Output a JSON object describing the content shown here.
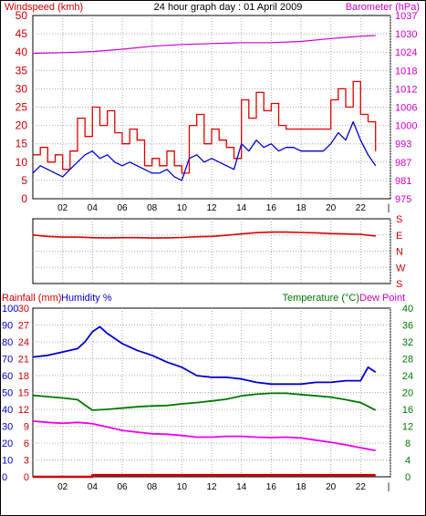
{
  "window": {
    "border_color": "#000000"
  },
  "chart_data": [
    {
      "type": "line",
      "panel": "wind-barometer",
      "title": "24 hour graph day : 01 April 2009",
      "left_axis_label": "Windspeed (kmh)",
      "right_axis_label": "Barometer (hPa)",
      "left_axis_color": "#cc0000",
      "right_axis_color": "#cc00cc",
      "xlim": [
        0,
        24
      ],
      "x_ticks": [
        "02",
        "04",
        "06",
        "08",
        "10",
        "12",
        "14",
        "16",
        "18",
        "20",
        "22",
        "|"
      ],
      "left_ticks": [
        "0",
        "5",
        "10",
        "15",
        "20",
        "25",
        "30",
        "35",
        "40",
        "45",
        "50"
      ],
      "left_ylim": [
        0,
        50
      ],
      "right_ticks": [
        "975",
        "981",
        "987",
        "993",
        "1000",
        "1006",
        "1012",
        "1018",
        "1024",
        "1030",
        "1037"
      ],
      "right_ylim": [
        975,
        1037
      ],
      "grid": true,
      "series": [
        {
          "name": "Wind gust",
          "color": "#dd0000",
          "axis": "left",
          "x": [
            0,
            0.5,
            1,
            1.5,
            2,
            2.5,
            3,
            3.5,
            4,
            4.5,
            5,
            5.5,
            6,
            6.5,
            7,
            7.5,
            8,
            8.5,
            9,
            9.5,
            10,
            10.5,
            11,
            11.5,
            12,
            12.5,
            13,
            13.5,
            14,
            14.5,
            15,
            15.5,
            16,
            16.5,
            17,
            17.5,
            18,
            18.5,
            19,
            19.5,
            20,
            20.5,
            21,
            21.5,
            22,
            22.5,
            23
          ],
          "values": [
            12,
            14,
            10,
            12,
            8,
            13,
            22,
            17,
            25,
            20,
            24,
            18,
            15,
            19,
            16,
            9,
            11,
            9,
            13,
            9,
            7,
            20,
            23,
            15,
            19,
            16,
            14,
            11,
            27,
            22,
            29,
            24,
            26,
            20,
            19,
            19,
            19,
            19,
            19,
            19,
            27,
            30,
            25,
            32,
            23,
            21,
            13
          ]
        },
        {
          "name": "Wind speed",
          "color": "#0000cc",
          "axis": "left",
          "x": [
            0,
            0.5,
            1,
            1.5,
            2,
            2.5,
            3,
            3.5,
            4,
            4.5,
            5,
            5.5,
            6,
            6.5,
            7,
            7.5,
            8,
            8.5,
            9,
            9.5,
            10,
            10.5,
            11,
            11.5,
            12,
            12.5,
            13,
            13.5,
            14,
            14.5,
            15,
            15.5,
            16,
            16.5,
            17,
            17.5,
            18,
            18.5,
            19,
            19.5,
            20,
            20.5,
            21,
            21.5,
            22,
            22.5,
            23
          ],
          "values": [
            7,
            9,
            8,
            7,
            6,
            8,
            10,
            12,
            13,
            11,
            12,
            10,
            9,
            10,
            9,
            8,
            7,
            7,
            8,
            6,
            5,
            11,
            12,
            10,
            11,
            10,
            9,
            8,
            15,
            13,
            16,
            14,
            15,
            13,
            14,
            14,
            13,
            13,
            13,
            13,
            15,
            18,
            16,
            21,
            16,
            12,
            9
          ]
        },
        {
          "name": "Barometer",
          "color": "#cc00cc",
          "axis": "right",
          "x": [
            0,
            2,
            4,
            6,
            8,
            10,
            12,
            14,
            16,
            18,
            20,
            22,
            23
          ],
          "values": [
            1024.2,
            1024.4,
            1024.8,
            1025.6,
            1026.6,
            1027.2,
            1027.5,
            1027.8,
            1027.8,
            1028.2,
            1029.2,
            1030.0,
            1030.2
          ]
        }
      ]
    },
    {
      "type": "line",
      "panel": "wind-direction",
      "direction_labels": [
        "S",
        "E",
        "N",
        "W",
        "S"
      ],
      "xlim": [
        0,
        24
      ],
      "ylim": [
        0,
        360
      ],
      "grid": true,
      "series": [
        {
          "name": "Wind direction",
          "color": "#dd0000",
          "x": [
            0,
            1,
            2,
            3,
            4,
            5,
            6,
            7,
            8,
            9,
            10,
            11,
            12,
            13,
            14,
            15,
            16,
            17,
            18,
            19,
            20,
            21,
            22,
            23
          ],
          "values": [
            270,
            262,
            258,
            258,
            255,
            254,
            255,
            255,
            253,
            254,
            256,
            260,
            262,
            268,
            276,
            283,
            286,
            286,
            284,
            282,
            278,
            276,
            274,
            264
          ]
        }
      ]
    },
    {
      "type": "line",
      "panel": "rain-humidity-temperature",
      "left_label_rainfall": "Rainfall (mm)",
      "left_label_humidity": "Humidity %",
      "right_label_temperature": "Temperature (°C)",
      "right_label_dewpoint": "Dew Point",
      "rainfall_color": "#cc0000",
      "humidity_color": "#0000cc",
      "temperature_color": "#007700",
      "dewpoint_color": "#cc00cc",
      "humidity_ticks": [
        "0",
        "10",
        "20",
        "30",
        "40",
        "50",
        "60",
        "70",
        "80",
        "90",
        "100"
      ],
      "rainfall_ticks": [
        "0",
        "3",
        "6",
        "9",
        "12",
        "15",
        "18",
        "21",
        "24",
        "27",
        "30"
      ],
      "temperature_ticks": [
        "0",
        "4",
        "8",
        "12",
        "16",
        "20",
        "24",
        "28",
        "32",
        "36",
        "40"
      ],
      "humidity_ylim": [
        0,
        100
      ],
      "temperature_ylim": [
        0,
        40
      ],
      "xlim": [
        0,
        24
      ],
      "x_ticks": [
        "02",
        "04",
        "06",
        "08",
        "10",
        "12",
        "14",
        "16",
        "18",
        "20",
        "22",
        "|"
      ],
      "grid": true,
      "series": [
        {
          "name": "Humidity",
          "color": "#0000cc",
          "axis": "humidity",
          "x": [
            0,
            1,
            2,
            3,
            3.5,
            4,
            4.5,
            5,
            5.5,
            6,
            7,
            8,
            9,
            10,
            11,
            12,
            13,
            14,
            15,
            16,
            17,
            18,
            19,
            20,
            21,
            22,
            22.5,
            23
          ],
          "values": [
            71,
            72,
            74,
            76,
            80,
            86,
            89,
            85,
            82,
            79,
            75,
            72,
            68,
            65,
            60,
            59,
            59,
            58,
            56,
            55,
            55,
            55,
            56,
            56,
            57,
            57,
            65,
            62
          ]
        },
        {
          "name": "Temperature",
          "color": "#007700",
          "axis": "temperature",
          "x": [
            0,
            1,
            2,
            3,
            3.5,
            4,
            5,
            6,
            7,
            8,
            9,
            10,
            11,
            12,
            13,
            14,
            15,
            16,
            17,
            18,
            19,
            20,
            21,
            22,
            23
          ],
          "values": [
            19.3,
            19.0,
            18.7,
            18.3,
            17.0,
            15.8,
            16.0,
            16.3,
            16.6,
            16.8,
            16.9,
            17.3,
            17.6,
            18.0,
            18.4,
            19.2,
            19.6,
            19.8,
            19.8,
            19.5,
            19.2,
            18.9,
            18.3,
            17.6,
            15.8
          ]
        },
        {
          "name": "Dew point",
          "color": "#ee00ee",
          "axis": "temperature",
          "x": [
            0,
            1,
            2,
            3,
            4,
            5,
            6,
            7,
            8,
            9,
            10,
            11,
            12,
            13,
            14,
            15,
            16,
            17,
            18,
            19,
            20,
            21,
            22,
            23
          ],
          "values": [
            13.2,
            12.9,
            12.7,
            12.9,
            12.6,
            11.8,
            11.0,
            10.6,
            10.2,
            10.1,
            9.8,
            9.4,
            9.4,
            9.6,
            9.6,
            9.4,
            9.3,
            9.4,
            9.2,
            8.7,
            8.2,
            7.6,
            6.9,
            6.2
          ]
        },
        {
          "name": "Rainfall",
          "color": "#cc0000",
          "axis": "rainfall",
          "x": [
            0,
            3.9,
            4.0,
            23
          ],
          "values": [
            0,
            0,
            0.3,
            0.3
          ]
        }
      ]
    }
  ]
}
